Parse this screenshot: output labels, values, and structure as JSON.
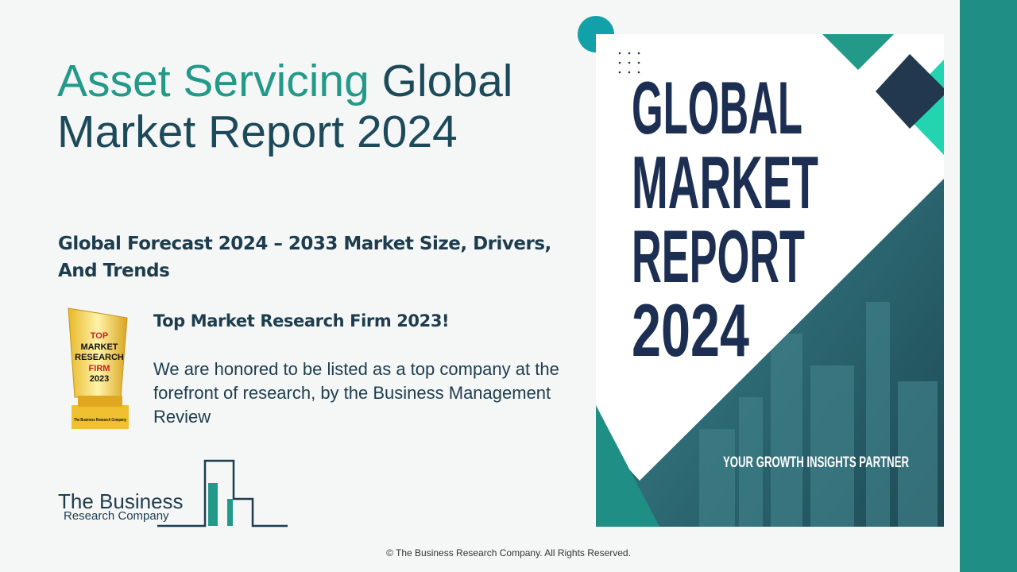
{
  "title": {
    "highlight": "Asset Servicing",
    "rest": "Global Market Report 2024"
  },
  "subtitle": "Global Forecast 2024 – 2033 Market Size, Drivers, And Trends",
  "award": {
    "badge": {
      "top": "TOP",
      "line2": "MARKET",
      "line3": "RESEARCH",
      "line4": "FIRM",
      "year": "2023",
      "footer": "The Business Research Company"
    },
    "heading": "Top Market Research Firm 2023!",
    "text": "We are honored to be listed as a top company at the forefront of research, by the Business Management Review"
  },
  "logo": {
    "line1": "The Business",
    "line2": "Research Company"
  },
  "cover": {
    "lines": [
      "GLOBAL",
      "MARKET",
      "REPORT",
      "2024"
    ],
    "tagline": "YOUR GROWTH INSIGHTS PARTNER"
  },
  "footer": "© The Business Research Company. All Rights Reserved."
}
